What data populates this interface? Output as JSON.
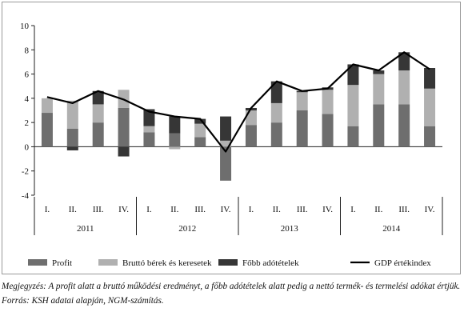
{
  "chart_data": {
    "type": "bar",
    "categories": [
      "I.",
      "II.",
      "III.",
      "IV.",
      "I.",
      "II.",
      "III.",
      "IV.",
      "I.",
      "II.",
      "III.",
      "IV.",
      "I.",
      "II.",
      "III.",
      "IV."
    ],
    "years": [
      "2011",
      "2012",
      "2013",
      "2014"
    ],
    "series": [
      {
        "name": "Profit",
        "color": "#6e6e6e",
        "values": [
          2.8,
          1.5,
          2.0,
          3.2,
          1.2,
          1.1,
          0.8,
          -2.8,
          1.8,
          2.0,
          3.0,
          2.7,
          1.7,
          3.5,
          3.5,
          1.7
        ]
      },
      {
        "name": "Bruttó bérek és keresetek",
        "color": "#b0b0b0",
        "values": [
          1.2,
          2.3,
          1.5,
          1.5,
          0.5,
          -0.2,
          1.1,
          0.5,
          1.2,
          1.6,
          1.5,
          2.0,
          3.4,
          2.5,
          2.8,
          3.1
        ]
      },
      {
        "name": "Főbb adótételek",
        "color": "#363636",
        "values": [
          0.0,
          -0.3,
          1.1,
          -0.8,
          1.4,
          1.4,
          0.4,
          2.0,
          0.2,
          1.8,
          0.1,
          0.2,
          1.7,
          0.3,
          1.5,
          1.7
        ]
      }
    ],
    "line": {
      "name": "GDP értékindex",
      "color": "#000000",
      "values": [
        4.1,
        3.6,
        4.6,
        3.9,
        2.9,
        2.5,
        2.3,
        -0.4,
        3.2,
        5.4,
        4.6,
        4.8,
        6.8,
        6.3,
        7.8,
        6.4
      ]
    },
    "ylim": [
      -4,
      10
    ],
    "yticks": [
      "10",
      "8",
      "6",
      "4",
      "2",
      "0",
      "-2",
      "-4"
    ],
    "legend_position": "bottom",
    "grid": false
  },
  "note": "Megjegyzés: A profit alatt a bruttó működési eredményt, a főbb adótételek alatt pedig a nettó termék- és termelési adókat értjük. Forrás: KSH adatai alapján, NGM-számítás."
}
